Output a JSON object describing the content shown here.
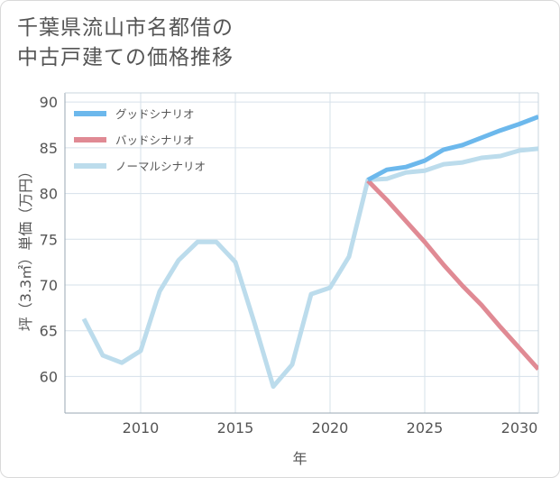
{
  "title": "千葉県流山市名都借の\n中古戸建ての価格推移",
  "chart_data": {
    "type": "line",
    "xlabel": "年",
    "ylabel": "坪（3.3㎡）単価（万円）",
    "xlim": [
      2006,
      2031
    ],
    "ylim": [
      56,
      91
    ],
    "xticks": [
      2010,
      2015,
      2020,
      2025,
      2030
    ],
    "yticks": [
      60,
      65,
      70,
      75,
      80,
      85,
      90
    ],
    "grid": true,
    "legend_position": "top-left",
    "series": [
      {
        "name": "グッドシナリオ",
        "color": "#6cb8ec",
        "x": [
          2022,
          2023,
          2024,
          2025,
          2026,
          2027,
          2028,
          2029,
          2030,
          2031
        ],
        "y": [
          81.5,
          82.6,
          82.9,
          83.6,
          84.8,
          85.3,
          86.1,
          86.9,
          87.6,
          88.4
        ]
      },
      {
        "name": "バッドシナリオ",
        "color": "#e08a94",
        "x": [
          2022,
          2023,
          2024,
          2025,
          2026,
          2027,
          2028,
          2029,
          2030,
          2031
        ],
        "y": [
          81.4,
          79.3,
          77.0,
          74.7,
          72.2,
          69.9,
          67.8,
          65.4,
          63.1,
          60.8
        ]
      },
      {
        "name": "ノーマルシナリオ",
        "color": "#bcdcec",
        "x": [
          2007,
          2008,
          2009,
          2010,
          2011,
          2012,
          2013,
          2014,
          2015,
          2016,
          2017,
          2018,
          2019,
          2020,
          2021,
          2022,
          2023,
          2024,
          2025,
          2026,
          2027,
          2028,
          2029,
          2030,
          2031
        ],
        "y": [
          66.3,
          62.3,
          61.5,
          62.8,
          69.3,
          72.7,
          74.7,
          74.7,
          72.5,
          65.9,
          58.9,
          61.3,
          69.0,
          69.7,
          73.1,
          81.5,
          81.6,
          82.3,
          82.5,
          83.2,
          83.4,
          83.9,
          84.1,
          84.7,
          84.9
        ]
      }
    ]
  }
}
